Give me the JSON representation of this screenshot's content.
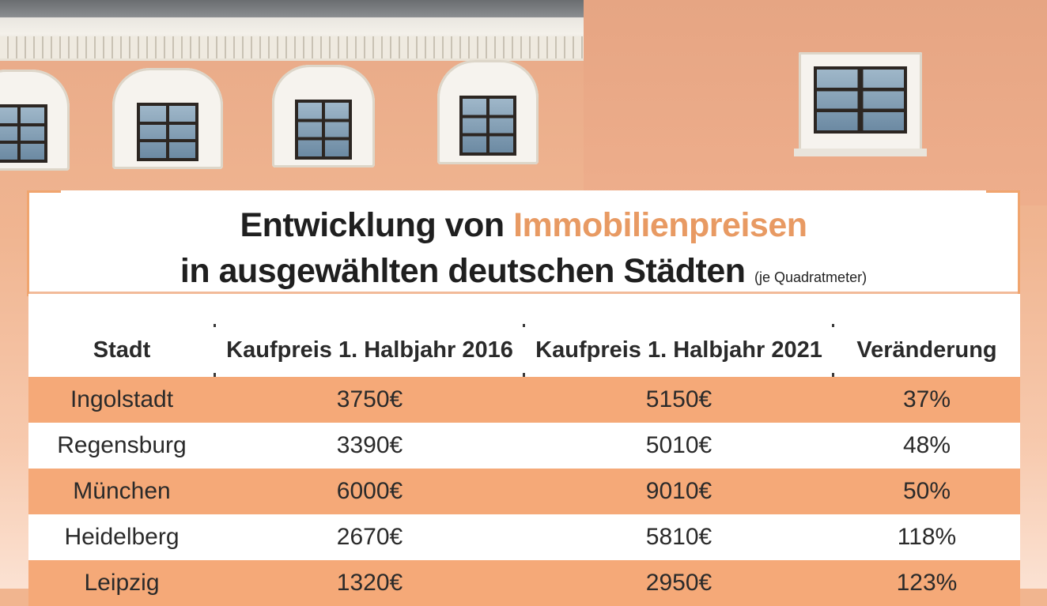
{
  "title": {
    "line1_prefix": "Entwicklung von",
    "line1_accent": "Immobilienpreisen",
    "line2_main": "in ausgewählten deutschen Städten",
    "line2_note": "(je Quadratmeter)"
  },
  "colors": {
    "accent": "#e89a63",
    "row_orange": "#f5a978",
    "text": "#1f1f1f"
  },
  "table": {
    "headers": [
      "Stadt",
      "Kaufpreis 1. Halbjahr 2016",
      "Kaufpreis 1. Halbjahr 2021",
      "Veränderung"
    ],
    "rows": [
      [
        "Ingolstadt",
        "3750€",
        "5150€",
        "37%"
      ],
      [
        "Regensburg",
        "3390€",
        "5010€",
        "48%"
      ],
      [
        "München",
        "6000€",
        "9010€",
        "50%"
      ],
      [
        "Heidelberg",
        "2670€",
        "5810€",
        "118%"
      ],
      [
        "Leipzig",
        "1320€",
        "2950€",
        "123%"
      ]
    ]
  }
}
